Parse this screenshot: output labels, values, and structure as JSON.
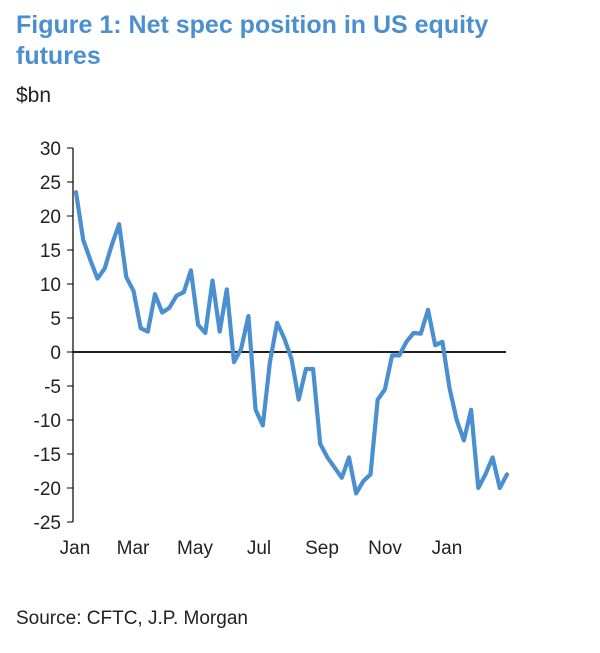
{
  "header": {
    "title": "Figure 1: Net spec position in US equity futures"
  },
  "unit_label": "$bn",
  "source": "Source: CFTC, J.P. Morgan",
  "colors": {
    "title": "#4a8fd0",
    "series": "#4a8fd0",
    "axis": "#000000"
  },
  "chart_data": {
    "type": "line",
    "title": "Figure 1: Net spec position in US equity futures",
    "ylabel": "$bn",
    "xlabel": "",
    "ylim": [
      -25,
      30
    ],
    "yticks": [
      30,
      25,
      20,
      15,
      10,
      5,
      0,
      -5,
      -10,
      -15,
      -20,
      -25
    ],
    "xticks": [
      "Jan",
      "Mar",
      "May",
      "Jul",
      "Sep",
      "Nov",
      "Jan"
    ],
    "grid": false,
    "series": [
      {
        "values": [
          23.5,
          16.5,
          13.5,
          10.8,
          12.3,
          15.8,
          18.8,
          11,
          9,
          3.5,
          3,
          8.5,
          5.8,
          6.5,
          8.3,
          8.8,
          12,
          4,
          2.8,
          10.5,
          3,
          9.2,
          -1.5,
          0.5,
          5.3,
          -8.5,
          -10.8,
          -1.5,
          4.3,
          2,
          -1,
          -7,
          -2.5,
          -2.5,
          -13.5,
          -15.5,
          -17,
          -18.5,
          -15.5,
          -20.8,
          -19,
          -18,
          -7,
          -5.5,
          -0.5,
          -0.5,
          1.5,
          2.8,
          2.7,
          6.2,
          1,
          1.5,
          -5.3,
          -10,
          -13,
          -8.5,
          -20,
          -18,
          -15.5,
          -20,
          -18
        ]
      }
    ]
  }
}
